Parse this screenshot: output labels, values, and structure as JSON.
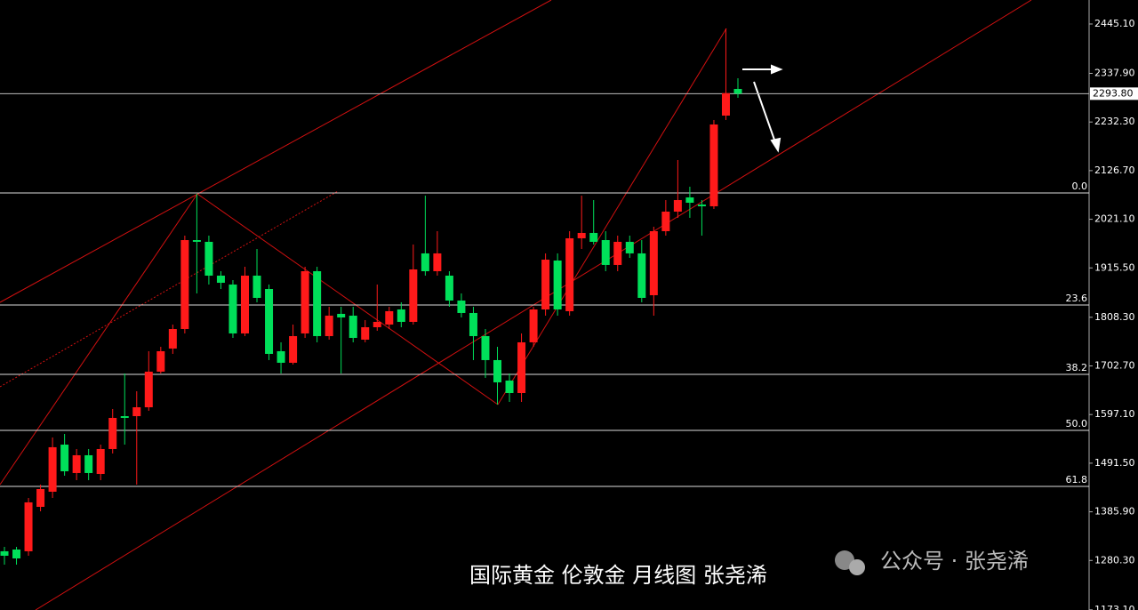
{
  "chart_data": {
    "type": "candlestick",
    "up_color": "#ff1a1a",
    "down_color": "#00e05a",
    "open": [
      1300.2,
      1304.0,
      1300.2,
      1396.7,
      1429.5,
      1531.8,
      1470.1,
      1508.7,
      1468.1,
      1522.2,
      1593.6,
      1593.6,
      1612.9,
      1690.2,
      1740.4,
      1782.8,
      1975.9,
      1972.1,
      1898.7,
      1879.4,
      1773.2,
      1898.7,
      1869.7,
      1734.6,
      1709.5,
      1773.2,
      1908.3,
      1767.4,
      1815.7,
      1811.8,
      1759.7,
      1786.7,
      1792.5,
      1825.3,
      1798.3,
      1947.0,
      1908.3,
      1898.7,
      1844.6,
      1817.6,
      1767.4,
      1715.3,
      1670.9,
      1643.8,
      1753.9,
      1825.3,
      1931.5,
      1821.5,
      1979.8,
      1991.4,
      1975.9,
      1921.9,
      1972.1,
      1947.0,
      1856.2,
      1995.2,
      2037.7,
      2068.6,
      2053.1,
      2049.3,
      2246.2,
      2304.1
    ],
    "high": [
      1309.8,
      1309.8,
      1416.0,
      1445.0,
      1547.3,
      1555.0,
      1522.2,
      1522.2,
      1531.8,
      1609.1,
      1686.3,
      1647.7,
      1734.6,
      1744.2,
      1792.5,
      1985.6,
      2076.3,
      1985.6,
      1908.3,
      1889.0,
      1918.0,
      1956.6,
      1879.4,
      1753.9,
      1792.5,
      1918.0,
      1918.0,
      1831.1,
      1831.1,
      1831.1,
      1802.1,
      1879.4,
      1831.1,
      1840.8,
      1966.3,
      2072.4,
      1995.2,
      1908.3,
      1860.1,
      1831.1,
      1782.8,
      1744.2,
      1686.3,
      1773.2,
      1831.1,
      1947.0,
      1947.0,
      1995.2,
      2072.4,
      2062.8,
      1995.2,
      1985.6,
      1985.6,
      1975.9,
      2004.9,
      2062.8,
      2149.7,
      2091.8,
      2062.8,
      2236.6,
      2435.4,
      2327.3
    ],
    "low": [
      1271.2,
      1271.2,
      1290.5,
      1387.0,
      1416.0,
      1464.3,
      1454.6,
      1454.6,
      1454.6,
      1512.5,
      1531.8,
      1445.0,
      1605.2,
      1686.3,
      1728.8,
      1773.2,
      1860.1,
      1879.4,
      1869.7,
      1763.5,
      1767.4,
      1840.8,
      1715.3,
      1686.3,
      1705.6,
      1763.5,
      1753.9,
      1759.7,
      1686.3,
      1753.9,
      1753.9,
      1779.0,
      1782.8,
      1786.7,
      1792.5,
      1898.7,
      1898.7,
      1831.1,
      1807.9,
      1715.3,
      1676.7,
      1618.7,
      1624.5,
      1624.5,
      1744.2,
      1811.8,
      1811.8,
      1811.8,
      1956.6,
      1966.3,
      1908.3,
      1908.3,
      1937.3,
      1840.8,
      1811.8,
      1985.6,
      2024.2,
      2024.2,
      1985.6,
      2043.5,
      2236.6,
      2284.8
    ],
    "close": [
      1290.5,
      1284.7,
      1406.4,
      1435.3,
      1526.1,
      1473.9,
      1508.7,
      1470.1,
      1522.2,
      1589.8,
      1589.8,
      1612.9,
      1690.2,
      1734.6,
      1782.8,
      1975.9,
      1972.1,
      1898.7,
      1883.2,
      1773.2,
      1898.7,
      1850.4,
      1728.8,
      1709.5,
      1767.4,
      1908.3,
      1767.4,
      1811.8,
      1807.9,
      1763.5,
      1786.7,
      1798.3,
      1821.5,
      1798.3,
      1912.2,
      1908.3,
      1947.0,
      1844.6,
      1817.6,
      1767.4,
      1715.3,
      1667.0,
      1643.8,
      1753.9,
      1825.3,
      1933.4,
      1825.3,
      1979.8,
      1991.4,
      1972.1,
      1921.9,
      1972.1,
      1947.0,
      1850.4,
      1995.2,
      2037.7,
      2062.8,
      2057.0,
      2049.3,
      2226.9,
      2295.0,
      2293.8
    ],
    "ylim": [
      1172.7,
      2497.2
    ],
    "yticks": [
      {
        "value": 2445.1,
        "label": "2445.10"
      },
      {
        "value": 2337.9,
        "label": "2337.90"
      },
      {
        "value": 2232.3,
        "label": "2232.30"
      },
      {
        "value": 2126.7,
        "label": "2126.70"
      },
      {
        "value": 2021.1,
        "label": "2021.10"
      },
      {
        "value": 1915.5,
        "label": "1915.50"
      },
      {
        "value": 1808.3,
        "label": "1808.30"
      },
      {
        "value": 1702.7,
        "label": "1702.70"
      },
      {
        "value": 1597.1,
        "label": "1597.10"
      },
      {
        "value": 1491.5,
        "label": "1491.50"
      },
      {
        "value": 1385.9,
        "label": "1385.90"
      },
      {
        "value": 1280.3,
        "label": "1280.30"
      },
      {
        "value": 1173.1,
        "label": "1173.10"
      }
    ],
    "current_price": {
      "value": 2293.8,
      "label": "2293.80"
    },
    "fib_levels": [
      {
        "label": "0.0",
        "price": 2078.3
      },
      {
        "label": "23.6",
        "price": 1835.0
      },
      {
        "label": "38.2",
        "price": 1684.4
      },
      {
        "label": "50.0",
        "price": 1562.7
      },
      {
        "label": "61.8",
        "price": 1441.1
      }
    ],
    "title": "国际黄金 伦敦金 月线图 张尧浠",
    "watermark": "公众号 · 张尧浠"
  }
}
